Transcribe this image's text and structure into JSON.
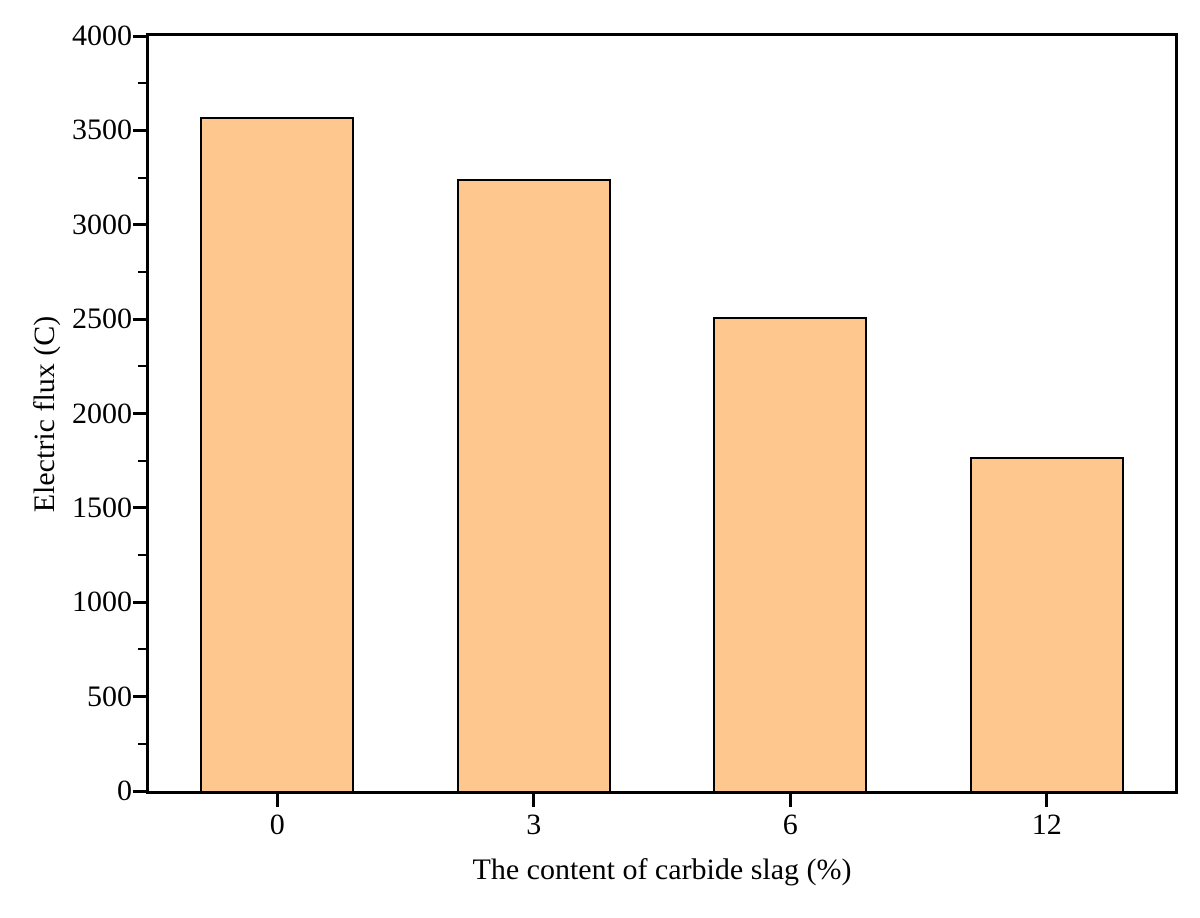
{
  "chart_data": {
    "type": "bar",
    "title": "",
    "xlabel": "The content of carbide slag (%)",
    "ylabel": "Electric flux (C)",
    "categories": [
      "0",
      "3",
      "6",
      "12"
    ],
    "values": [
      3570,
      3240,
      2510,
      1770
    ],
    "ylim": [
      0,
      4000
    ],
    "y_major_ticks": [
      0,
      500,
      1000,
      1500,
      2000,
      2500,
      3000,
      3500,
      4000
    ],
    "y_minor_step": 250,
    "grid": false,
    "legend": null,
    "bar_width_fraction": 0.6,
    "colors": {
      "bar_fill": "#FDC78E",
      "bar_border": "#000000",
      "axis": "#000000",
      "background": "#ffffff"
    }
  }
}
